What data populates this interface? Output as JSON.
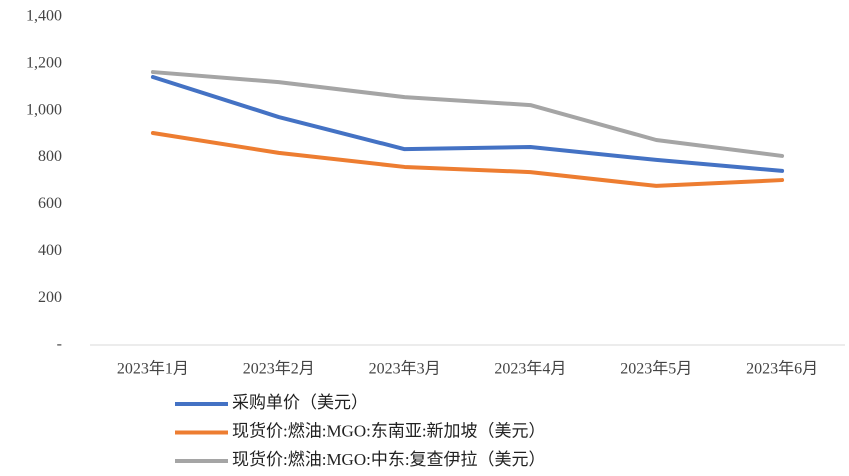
{
  "chart_data": {
    "type": "line",
    "categories": [
      "2023年1月",
      "2023年2月",
      "2023年3月",
      "2023年4月",
      "2023年5月",
      "2023年6月"
    ],
    "series": [
      {
        "name": "采购单价（美元）",
        "color": "#4472c4",
        "values": [
          1144,
          973,
          836,
          845,
          790,
          743
        ]
      },
      {
        "name": "现货价:燃油:MGO:东南亚:新加坡（美元）",
        "color": "#ed7d31",
        "values": [
          905,
          820,
          760,
          738,
          679,
          704
        ]
      },
      {
        "name": "现货价:燃油:MGO:中东:复查伊拉（美元）",
        "color": "#a5a5a5",
        "values": [
          1165,
          1122,
          1058,
          1024,
          875,
          807
        ]
      }
    ],
    "ylim": [
      0,
      1400
    ],
    "yticks": [
      {
        "value": 0,
        "label": "-"
      },
      200,
      400,
      600,
      800,
      {
        "value": 1000,
        "label": "1,000"
      },
      {
        "value": 1200,
        "label": "1,200"
      },
      {
        "value": 1400,
        "label": "1,400"
      }
    ],
    "grid": false,
    "legend": "bottom"
  }
}
